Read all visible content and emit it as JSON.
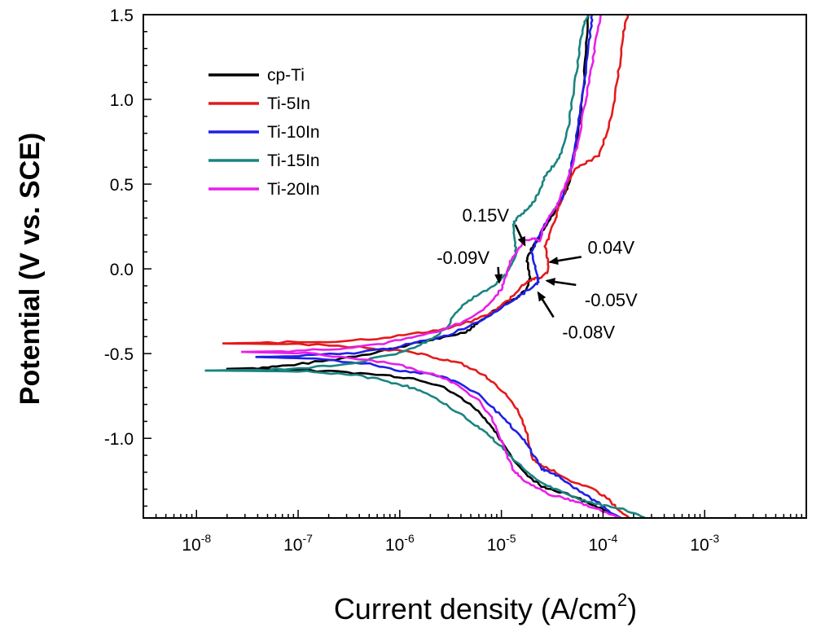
{
  "chart_data": {
    "type": "line",
    "title": "",
    "xlabel": "Current density (A/cm",
    "xlabel_sup": "2",
    "xlabel_close": ")",
    "ylabel": "Potential (V vs. SCE)",
    "x_scale": "log",
    "xlim": [
      3e-09,
      0.01
    ],
    "ylim": [
      -1.47,
      1.5
    ],
    "x_ticks": [
      {
        "base": "10",
        "exp": "-8",
        "value": 1e-08
      },
      {
        "base": "10",
        "exp": "-7",
        "value": 1e-07
      },
      {
        "base": "10",
        "exp": "-6",
        "value": 1e-06
      },
      {
        "base": "10",
        "exp": "-5",
        "value": 1e-05
      },
      {
        "base": "10",
        "exp": "-4",
        "value": 0.0001
      },
      {
        "base": "10",
        "exp": "-3",
        "value": 0.001
      }
    ],
    "y_ticks": [
      {
        "label": "1.5",
        "value": 1.5
      },
      {
        "label": "1.0",
        "value": 1.0
      },
      {
        "label": "0.5",
        "value": 0.5
      },
      {
        "label": "0.0",
        "value": 0.0
      },
      {
        "label": "-0.5",
        "value": -0.5
      },
      {
        "label": "-1.0",
        "value": -1.0
      }
    ],
    "grid": false,
    "legend_position": "top-left",
    "series": [
      {
        "name": "cp-Ti",
        "color": "#000000",
        "anodic": [
          [
            2e-08,
            -0.59
          ],
          [
            4e-08,
            -0.585
          ],
          [
            8e-08,
            -0.57
          ],
          [
            2e-07,
            -0.54
          ],
          [
            5e-07,
            -0.5
          ],
          [
            1e-06,
            -0.46
          ],
          [
            2e-06,
            -0.42
          ],
          [
            3e-06,
            -0.4
          ],
          [
            4.5e-06,
            -0.37
          ],
          [
            5.5e-06,
            -0.33
          ],
          [
            7.5e-06,
            -0.27
          ],
          [
            1e-05,
            -0.22
          ],
          [
            1.4e-05,
            -0.17
          ],
          [
            1.8e-05,
            -0.11
          ],
          [
            1.9e-05,
            -0.05
          ],
          [
            1.8e-05,
            0.02
          ],
          [
            1.8e-05,
            0.07
          ],
          [
            2e-05,
            0.12
          ],
          [
            2.3e-05,
            0.18
          ],
          [
            2.8e-05,
            0.26
          ],
          [
            3.5e-05,
            0.36
          ],
          [
            4e-05,
            0.42
          ],
          [
            4.6e-05,
            0.5
          ],
          [
            5e-05,
            0.62
          ],
          [
            5.5e-05,
            0.75
          ],
          [
            6e-05,
            0.9
          ],
          [
            6.5e-05,
            1.1
          ],
          [
            6.8e-05,
            1.3
          ],
          [
            7.2e-05,
            1.5
          ]
        ],
        "cathodic": [
          [
            2e-08,
            -0.59
          ],
          [
            8e-08,
            -0.595
          ],
          [
            3e-07,
            -0.61
          ],
          [
            8e-07,
            -0.63
          ],
          [
            1.5e-06,
            -0.65
          ],
          [
            2.5e-06,
            -0.69
          ],
          [
            4e-06,
            -0.76
          ],
          [
            6e-06,
            -0.84
          ],
          [
            8e-06,
            -0.93
          ],
          [
            1e-05,
            -1.02
          ],
          [
            1.3e-05,
            -1.12
          ],
          [
            1.8e-05,
            -1.22
          ],
          [
            2.5e-05,
            -1.28
          ],
          [
            3.5e-05,
            -1.31
          ],
          [
            5e-05,
            -1.34
          ],
          [
            7e-05,
            -1.38
          ],
          [
            0.0001,
            -1.42
          ],
          [
            0.00015,
            -1.47
          ]
        ]
      },
      {
        "name": "Ti-5In",
        "color": "#e31a1c",
        "anodic": [
          [
            1.8e-08,
            -0.44
          ],
          [
            5e-08,
            -0.435
          ],
          [
            2e-07,
            -0.43
          ],
          [
            6e-07,
            -0.41
          ],
          [
            1.5e-06,
            -0.38
          ],
          [
            3e-06,
            -0.35
          ],
          [
            5e-06,
            -0.31
          ],
          [
            8e-06,
            -0.26
          ],
          [
            1.2e-05,
            -0.18
          ],
          [
            1.6e-05,
            -0.1
          ],
          [
            2e-05,
            -0.06
          ],
          [
            2.4e-05,
            -0.055
          ],
          [
            2.8e-05,
            -0.02
          ],
          [
            2.9e-05,
            0.04
          ],
          [
            2.7e-05,
            0.13
          ],
          [
            2.9e-05,
            0.18
          ],
          [
            3.3e-05,
            0.28
          ],
          [
            3.8e-05,
            0.38
          ],
          [
            4.6e-05,
            0.52
          ],
          [
            5.5e-05,
            0.6
          ],
          [
            7e-05,
            0.63
          ],
          [
            9e-05,
            0.67
          ],
          [
            0.00011,
            0.8
          ],
          [
            0.00013,
            1.0
          ],
          [
            0.000145,
            1.2
          ],
          [
            0.00016,
            1.4
          ],
          [
            0.000175,
            1.5
          ]
        ],
        "cathodic": [
          [
            1.8e-08,
            -0.44
          ],
          [
            1e-07,
            -0.445
          ],
          [
            4e-07,
            -0.46
          ],
          [
            9e-07,
            -0.48
          ],
          [
            1.5e-06,
            -0.5
          ],
          [
            2.5e-06,
            -0.53
          ],
          [
            4e-06,
            -0.56
          ],
          [
            6e-06,
            -0.61
          ],
          [
            8e-06,
            -0.66
          ],
          [
            1.1e-05,
            -0.74
          ],
          [
            1.5e-05,
            -0.85
          ],
          [
            1.8e-05,
            -0.98
          ],
          [
            2e-05,
            -1.12
          ],
          [
            2.5e-05,
            -1.16
          ],
          [
            3.5e-05,
            -1.2
          ],
          [
            5e-05,
            -1.26
          ],
          [
            8e-05,
            -1.3
          ],
          [
            0.00011,
            -1.35
          ],
          [
            0.00014,
            -1.42
          ],
          [
            0.00018,
            -1.47
          ]
        ]
      },
      {
        "name": "Ti-10In",
        "color": "#1f1fe6",
        "anodic": [
          [
            3.8e-08,
            -0.52
          ],
          [
            1e-07,
            -0.515
          ],
          [
            3e-07,
            -0.5
          ],
          [
            8e-07,
            -0.47
          ],
          [
            1.6e-06,
            -0.43
          ],
          [
            3e-06,
            -0.39
          ],
          [
            6e-06,
            -0.31
          ],
          [
            1e-05,
            -0.23
          ],
          [
            1.5e-05,
            -0.16
          ],
          [
            2e-05,
            -0.11
          ],
          [
            2.3e-05,
            -0.08
          ],
          [
            2.3e-05,
            -0.04
          ],
          [
            2.1e-05,
            0.03
          ],
          [
            2e-05,
            0.1
          ],
          [
            2.2e-05,
            0.17
          ],
          [
            2.6e-05,
            0.24
          ],
          [
            3.2e-05,
            0.34
          ],
          [
            4e-05,
            0.42
          ],
          [
            4.6e-05,
            0.55
          ],
          [
            5.2e-05,
            0.7
          ],
          [
            5.8e-05,
            0.88
          ],
          [
            6.4e-05,
            1.05
          ],
          [
            7e-05,
            1.25
          ],
          [
            7.5e-05,
            1.4
          ],
          [
            7.8e-05,
            1.5
          ]
        ],
        "cathodic": [
          [
            3.8e-08,
            -0.52
          ],
          [
            1.5e-07,
            -0.53
          ],
          [
            5e-07,
            -0.56
          ],
          [
            1e-06,
            -0.6
          ],
          [
            2e-06,
            -0.62
          ],
          [
            3.5e-06,
            -0.66
          ],
          [
            6e-06,
            -0.74
          ],
          [
            9e-06,
            -0.84
          ],
          [
            1.2e-05,
            -0.92
          ],
          [
            1.6e-05,
            -1.0
          ],
          [
            2e-05,
            -1.08
          ],
          [
            2.5e-05,
            -1.18
          ],
          [
            3e-05,
            -1.2
          ],
          [
            4e-05,
            -1.24
          ],
          [
            5.5e-05,
            -1.3
          ],
          [
            7e-05,
            -1.34
          ],
          [
            9e-05,
            -1.38
          ],
          [
            0.00012,
            -1.44
          ],
          [
            0.00015,
            -1.47
          ]
        ]
      },
      {
        "name": "Ti-15In",
        "color": "#1a8480",
        "anodic": [
          [
            1.2e-08,
            -0.6
          ],
          [
            5e-08,
            -0.595
          ],
          [
            1.5e-07,
            -0.58
          ],
          [
            4e-07,
            -0.55
          ],
          [
            9e-07,
            -0.5
          ],
          [
            1.5e-06,
            -0.46
          ],
          [
            2.2e-06,
            -0.4
          ],
          [
            3e-06,
            -0.34
          ],
          [
            3.5e-06,
            -0.26
          ],
          [
            4.5e-06,
            -0.2
          ],
          [
            6e-06,
            -0.15
          ],
          [
            8.5e-06,
            -0.1
          ],
          [
            1e-05,
            -0.06
          ],
          [
            1.2e-05,
            0.0
          ],
          [
            1.4e-05,
            0.08
          ],
          [
            1.35e-05,
            0.17
          ],
          [
            1.3e-05,
            0.25
          ],
          [
            1.4e-05,
            0.3
          ],
          [
            1.7e-05,
            0.34
          ],
          [
            2e-05,
            0.38
          ],
          [
            2.3e-05,
            0.44
          ],
          [
            2.6e-05,
            0.53
          ],
          [
            3e-05,
            0.58
          ],
          [
            3.4e-05,
            0.62
          ],
          [
            4e-05,
            0.7
          ],
          [
            4.6e-05,
            0.85
          ],
          [
            5e-05,
            1.0
          ],
          [
            5.6e-05,
            1.2
          ],
          [
            6e-05,
            1.35
          ],
          [
            6.5e-05,
            1.45
          ],
          [
            7.2e-05,
            1.5
          ]
        ],
        "cathodic": [
          [
            1.2e-08,
            -0.6
          ],
          [
            1e-07,
            -0.605
          ],
          [
            3e-07,
            -0.62
          ],
          [
            6e-07,
            -0.65
          ],
          [
            1e-06,
            -0.68
          ],
          [
            1.6e-06,
            -0.72
          ],
          [
            2.5e-06,
            -0.78
          ],
          [
            3.8e-06,
            -0.85
          ],
          [
            5.5e-06,
            -0.92
          ],
          [
            7.5e-06,
            -0.98
          ],
          [
            1e-05,
            -1.05
          ],
          [
            1.3e-05,
            -1.12
          ],
          [
            1.8e-05,
            -1.2
          ],
          [
            2.6e-05,
            -1.27
          ],
          [
            4e-05,
            -1.32
          ],
          [
            6e-05,
            -1.36
          ],
          [
            9e-05,
            -1.39
          ],
          [
            0.00014,
            -1.41
          ],
          [
            0.0002,
            -1.44
          ],
          [
            0.00026,
            -1.47
          ]
        ]
      },
      {
        "name": "Ti-20In",
        "color": "#e81fe8",
        "anodic": [
          [
            2.8e-08,
            -0.49
          ],
          [
            8e-08,
            -0.485
          ],
          [
            2.5e-07,
            -0.47
          ],
          [
            7e-07,
            -0.44
          ],
          [
            1.5e-06,
            -0.4
          ],
          [
            3e-06,
            -0.35
          ],
          [
            5e-06,
            -0.29
          ],
          [
            7.5e-06,
            -0.21
          ],
          [
            1e-05,
            -0.12
          ],
          [
            1.1e-05,
            -0.05
          ],
          [
            1.2e-05,
            0.03
          ],
          [
            1.4e-05,
            0.1
          ],
          [
            1.7e-05,
            0.17
          ],
          [
            2.1e-05,
            0.18
          ],
          [
            2.4e-05,
            0.16
          ],
          [
            2.5e-05,
            0.22
          ],
          [
            2.9e-05,
            0.3
          ],
          [
            3.5e-05,
            0.37
          ],
          [
            4e-05,
            0.46
          ],
          [
            4.8e-05,
            0.58
          ],
          [
            5.5e-05,
            0.72
          ],
          [
            6.3e-05,
            0.9
          ],
          [
            7e-05,
            1.05
          ],
          [
            7.8e-05,
            1.2
          ],
          [
            8.6e-05,
            1.36
          ],
          [
            9.5e-05,
            1.5
          ]
        ],
        "cathodic": [
          [
            2.8e-08,
            -0.49
          ],
          [
            1.2e-07,
            -0.5
          ],
          [
            4e-07,
            -0.53
          ],
          [
            9e-07,
            -0.56
          ],
          [
            1.5e-06,
            -0.6
          ],
          [
            2.5e-06,
            -0.63
          ],
          [
            4e-06,
            -0.7
          ],
          [
            6e-06,
            -0.78
          ],
          [
            8e-06,
            -0.88
          ],
          [
            9.5e-06,
            -0.98
          ],
          [
            1.1e-05,
            -1.08
          ],
          [
            1.3e-05,
            -1.18
          ],
          [
            1.6e-05,
            -1.24
          ],
          [
            2.2e-05,
            -1.29
          ],
          [
            3e-05,
            -1.33
          ],
          [
            4.5e-05,
            -1.36
          ],
          [
            6.5e-05,
            -1.39
          ],
          [
            9e-05,
            -1.42
          ],
          [
            0.00012,
            -1.45
          ],
          [
            0.00015,
            -1.47
          ]
        ]
      }
    ],
    "annotations": [
      {
        "text": "0.15V",
        "text_x": 7e-06,
        "text_y": 0.28,
        "target_x": 1.7e-05,
        "target_y": 0.14
      },
      {
        "text": "-0.09V",
        "text_x": 4.2e-06,
        "text_y": 0.03,
        "target_x": 9.5e-06,
        "target_y": -0.08
      },
      {
        "text": "0.04V",
        "text_x": 0.00012,
        "text_y": 0.09,
        "target_x": 3e-05,
        "target_y": 0.04
      },
      {
        "text": "-0.05V",
        "text_x": 0.00012,
        "text_y": -0.22,
        "target_x": 2.8e-05,
        "target_y": -0.07
      },
      {
        "text": "-0.08V",
        "text_x": 7.2e-05,
        "text_y": -0.41,
        "target_x": 2.3e-05,
        "target_y": -0.14
      }
    ]
  }
}
